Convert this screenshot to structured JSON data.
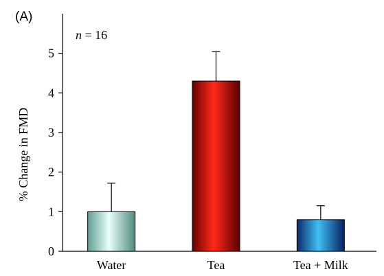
{
  "panel_label": "(A)",
  "annotation": {
    "italic": "n",
    "rest": " = 16"
  },
  "chart_data": {
    "type": "bar",
    "title": "",
    "xlabel": "",
    "ylabel": "% Change in FMD",
    "ylim": [
      0,
      6
    ],
    "yticks": [
      0,
      1,
      2,
      3,
      4,
      5
    ],
    "categories": [
      "Water",
      "Tea",
      "Tea + Milk"
    ],
    "values": [
      1.0,
      4.3,
      0.8
    ],
    "errors": [
      0.72,
      0.74,
      0.35
    ],
    "colors": [
      "#9fe0d2",
      "#ee0000",
      "#1f9ad8"
    ],
    "grid": false,
    "legend": "none"
  }
}
